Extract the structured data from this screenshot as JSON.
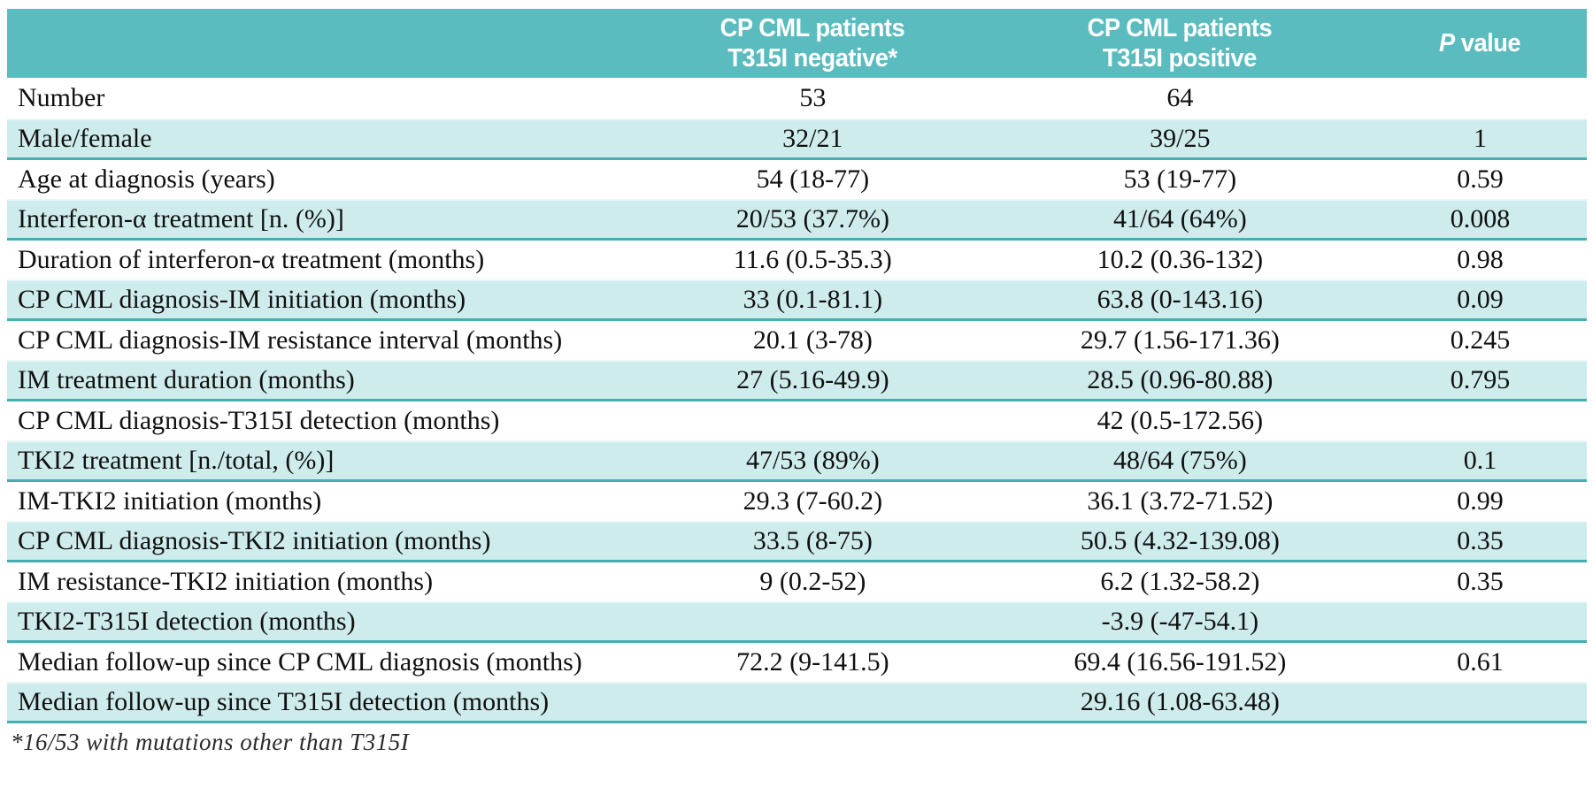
{
  "colors": {
    "header_bg": "#5abcbe",
    "header_text": "#ffffff",
    "row_alt_bg": "#cfeced",
    "row_rule": "#45aeb0",
    "body_text": "#101010"
  },
  "table": {
    "header": {
      "negative": {
        "line1": "CP CML patients",
        "line2": "T315I negative*"
      },
      "positive": {
        "line1": "CP CML patients",
        "line2": "T315I positive"
      },
      "pvalue": {
        "p_italic": "P",
        "p_rest": " value"
      }
    },
    "rows": [
      {
        "label": "Number",
        "neg": "53",
        "pos": "64",
        "p": ""
      },
      {
        "label": "Male/female",
        "neg": "32/21",
        "pos": "39/25",
        "p": "1"
      },
      {
        "label": "Age at diagnosis (years)",
        "neg": "54 (18-77)",
        "pos": "53 (19-77)",
        "p": "0.59"
      },
      {
        "label": "Interferon-α treatment [n. (%)]",
        "neg": "20/53 (37.7%)",
        "pos": "41/64 (64%)",
        "p": "0.008"
      },
      {
        "label": "Duration of interferon-α treatment (months)",
        "neg": "11.6 (0.5-35.3)",
        "pos": "10.2 (0.36-132)",
        "p": "0.98"
      },
      {
        "label": "CP CML diagnosis-IM initiation (months)",
        "neg": "33 (0.1-81.1)",
        "pos": "63.8 (0-143.16)",
        "p": "0.09"
      },
      {
        "label": "CP CML diagnosis-IM resistance interval (months)",
        "neg": "20.1 (3-78)",
        "pos": "29.7 (1.56-171.36)",
        "p": "0.245"
      },
      {
        "label": "IM treatment duration (months)",
        "neg": "27 (5.16-49.9)",
        "pos": "28.5 (0.96-80.88)",
        "p": "0.795"
      },
      {
        "label": "CP CML diagnosis-T315I detection (months)",
        "neg": "",
        "pos": "42 (0.5-172.56)",
        "p": ""
      },
      {
        "label": "TKI2 treatment [n./total, (%)]",
        "neg": "47/53 (89%)",
        "pos": "48/64 (75%)",
        "p": "0.1"
      },
      {
        "label": "IM-TKI2 initiation (months)",
        "neg": "29.3 (7-60.2)",
        "pos": "36.1 (3.72-71.52)",
        "p": "0.99"
      },
      {
        "label": "CP CML diagnosis-TKI2 initiation (months)",
        "neg": "33.5 (8-75)",
        "pos": "50.5 (4.32-139.08)",
        "p": "0.35"
      },
      {
        "label": "IM resistance-TKI2 initiation (months)",
        "neg": "9 (0.2-52)",
        "pos": "6.2 (1.32-58.2)",
        "p": "0.35"
      },
      {
        "label": "TKI2-T315I detection (months)",
        "neg": "",
        "pos": "-3.9 (-47-54.1)",
        "p": ""
      },
      {
        "label": "Median follow-up since CP CML diagnosis (months)",
        "neg": "72.2 (9-141.5)",
        "pos": "69.4 (16.56-191.52)",
        "p": "0.61"
      },
      {
        "label": "Median follow-up since T315I detection (months)",
        "neg": "",
        "pos": "29.16 (1.08-63.48)",
        "p": ""
      }
    ]
  },
  "footnote": "*16/53 with mutations other than T315I"
}
